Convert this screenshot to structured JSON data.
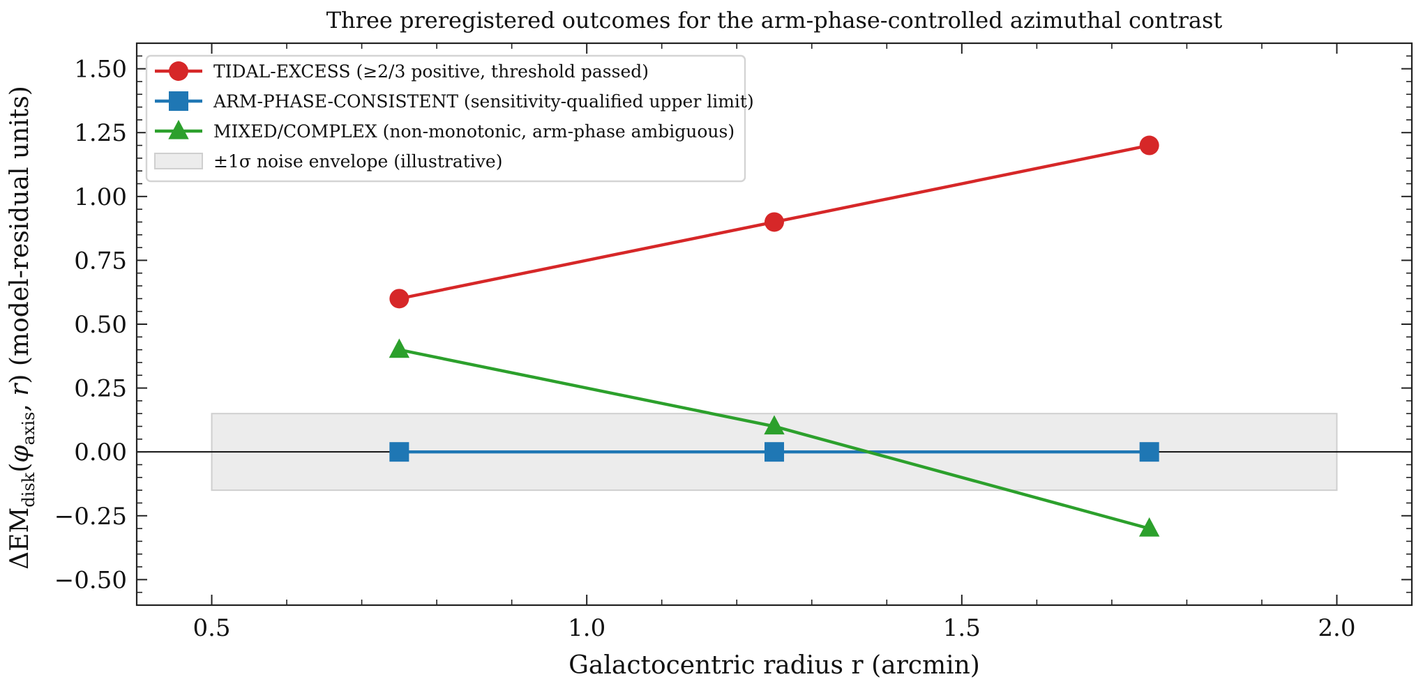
{
  "chart_data": {
    "type": "line",
    "title": "Three preregistered outcomes for the arm-phase-controlled azimuthal contrast",
    "xlabel": "Galactocentric radius r (arcmin)",
    "ylabel": {
      "main": "ΔEM",
      "sub": "disk",
      "paren_open": "(",
      "phi": "φ",
      "phi_sub": "axis",
      "comma": ", ",
      "r": "r",
      "paren_close": ")",
      "suffix": " (model-residual units)"
    },
    "xlim": [
      0.4,
      2.1
    ],
    "ylim": [
      -0.6,
      1.6
    ],
    "x_ticks": [
      0.5,
      1.0,
      1.5,
      2.0
    ],
    "x_tick_labels": [
      "0.5",
      "1.0",
      "1.5",
      "2.0"
    ],
    "y_ticks": [
      -0.5,
      -0.25,
      0.0,
      0.25,
      0.5,
      0.75,
      1.0,
      1.25,
      1.5
    ],
    "y_tick_labels": [
      "−0.50",
      "−0.25",
      "0.00",
      "0.25",
      "0.50",
      "0.75",
      "1.00",
      "1.25",
      "1.50"
    ],
    "x": [
      0.75,
      1.25,
      1.75
    ],
    "series": [
      {
        "name": "TIDAL-EXCESS (≥2/3 positive, threshold passed)",
        "values": [
          0.6,
          0.9,
          1.2
        ],
        "color": "#d62728",
        "marker": "circle"
      },
      {
        "name": "ARM-PHASE-CONSISTENT (sensitivity-qualified upper limit)",
        "values": [
          0.0,
          0.0,
          0.0
        ],
        "color": "#1f77b4",
        "marker": "square"
      },
      {
        "name": "MIXED/COMPLEX (non-monotonic, arm-phase ambiguous)",
        "values": [
          0.4,
          0.1,
          -0.3
        ],
        "color": "#2ca02c",
        "marker": "triangle"
      }
    ],
    "band": {
      "name": "±1σ noise envelope (illustrative)",
      "x_range": [
        0.5,
        2.0
      ],
      "y_range": [
        -0.15,
        0.15
      ],
      "color": "#e0e0e0"
    },
    "reference_line_y": 0.0,
    "legend_position": "upper-left",
    "grid": false
  }
}
